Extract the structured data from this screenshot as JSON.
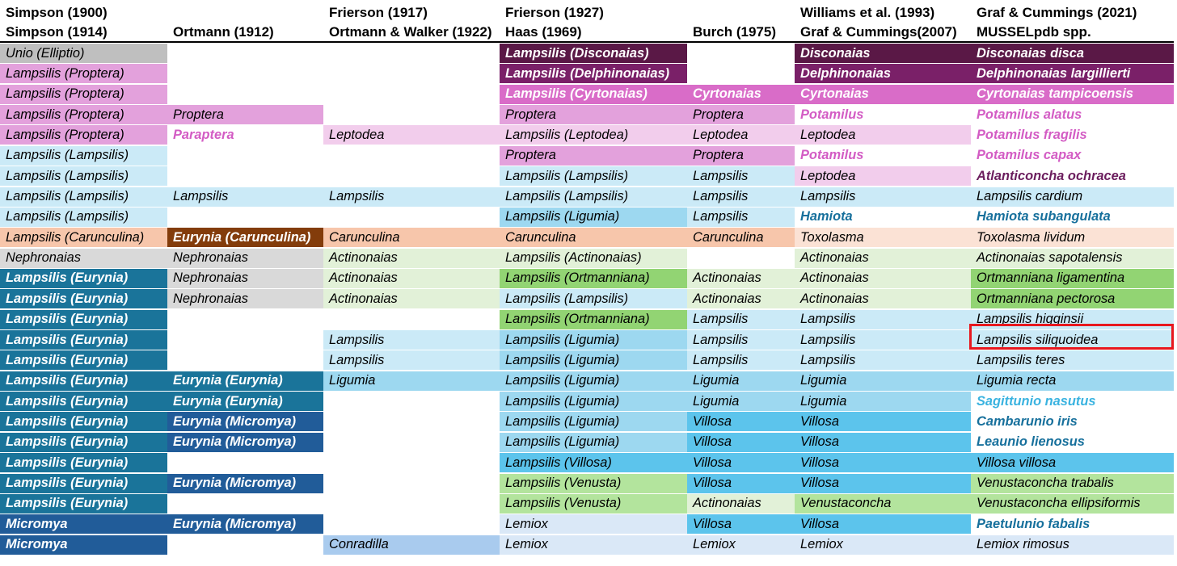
{
  "headers": [
    [
      "Simpson (1900)",
      "Simpson (1914)"
    ],
    [
      "",
      "Ortmann (1912)"
    ],
    [
      "Frierson (1917)",
      "Ortmann & Walker (1922)"
    ],
    [
      "Frierson (1927)",
      "Haas (1969)"
    ],
    [
      "",
      "Burch (1975)"
    ],
    [
      "Williams et al. (1993)",
      "Graf & Cummings(2007)"
    ],
    [
      "Graf & Cummings (2021)",
      "MUSSELpdb spp."
    ]
  ],
  "palette": {
    "gray": {
      "bg": "#bfbfbf",
      "fg": "#000000"
    },
    "lightgray": {
      "bg": "#d9d9d9",
      "fg": "#000000"
    },
    "darkpurple": {
      "bg": "#5a1846",
      "fg": "#ffffff"
    },
    "purple": {
      "bg": "#7a2068",
      "fg": "#ffffff"
    },
    "magenta": {
      "bg": "#d96cc8",
      "fg": "#ffffff"
    },
    "pink": {
      "bg": "#e3a1dc",
      "fg": "#000000"
    },
    "lightpink": {
      "bg": "#f2cdec",
      "fg": "#000000"
    },
    "lightblue": {
      "bg": "#cbeaf7",
      "fg": "#000000"
    },
    "skyblue": {
      "bg": "#9dd8f0",
      "fg": "#000000"
    },
    "medblue": {
      "bg": "#5cc4ec",
      "fg": "#000000"
    },
    "brown": {
      "bg": "#833c0b",
      "fg": "#ffffff"
    },
    "peach": {
      "bg": "#f7c6ab",
      "fg": "#000000"
    },
    "lightpeach": {
      "bg": "#fbe2d5",
      "fg": "#000000"
    },
    "palegreen": {
      "bg": "#e2f1d8",
      "fg": "#000000"
    },
    "green": {
      "bg": "#92d473",
      "fg": "#000000"
    },
    "lightgreen": {
      "bg": "#b3e49d",
      "fg": "#000000"
    },
    "teal": {
      "bg": "#1a749a",
      "fg": "#ffffff"
    },
    "navy": {
      "bg": "#215c99",
      "fg": "#ffffff"
    },
    "blue": {
      "bg": "#1f5fa0",
      "fg": "#ffffff"
    },
    "paleblue": {
      "bg": "#dae8f7",
      "fg": "#000000"
    },
    "conradilla": {
      "bg": "#a9cbee",
      "fg": "#000000"
    },
    "white": {
      "bg": "#ffffff",
      "fg": "#000000"
    },
    "white_pink_text": {
      "bg": "#ffffff",
      "fg": "#d35cc4"
    },
    "white_purple_text": {
      "bg": "#ffffff",
      "fg": "#6c1e5e"
    },
    "white_blue_text": {
      "bg": "#ffffff",
      "fg": "#17709c"
    },
    "white_cyan_text": {
      "bg": "#ffffff",
      "fg": "#3ab3e0"
    },
    "peach_white_text": {
      "bg": "#ffffff",
      "fg": "#d35cc4"
    }
  },
  "highlight": {
    "row": 14,
    "col": 6,
    "color": "#e8181e"
  },
  "rows": [
    [
      [
        "Unio (Elliptio)",
        "gray",
        0
      ],
      [
        "",
        "white",
        0
      ],
      [
        "",
        "white",
        0
      ],
      [
        "Lampsilis (Disconaias)",
        "darkpurple",
        1
      ],
      [
        "",
        "white",
        0
      ],
      [
        "Disconaias",
        "darkpurple",
        1
      ],
      [
        "Disconaias disca",
        "darkpurple",
        1
      ]
    ],
    [
      [
        "Lampsilis (Proptera)",
        "pink",
        0
      ],
      [
        "",
        "white",
        0
      ],
      [
        "",
        "white",
        0
      ],
      [
        "Lampsilis (Delphinonaias)",
        "purple",
        1
      ],
      [
        "",
        "white",
        0
      ],
      [
        "Delphinonaias",
        "purple",
        1
      ],
      [
        "Delphinonaias largillierti",
        "purple",
        1
      ]
    ],
    [
      [
        "Lampsilis (Proptera)",
        "pink",
        0
      ],
      [
        "",
        "white",
        0
      ],
      [
        "",
        "white",
        0
      ],
      [
        "Lampsilis (Cyrtonaias)",
        "magenta",
        1
      ],
      [
        "Cyrtonaias",
        "magenta",
        1
      ],
      [
        "Cyrtonaias",
        "magenta",
        1
      ],
      [
        "Cyrtonaias tampicoensis",
        "magenta",
        1
      ]
    ],
    [
      [
        "Lampsilis (Proptera)",
        "pink",
        0
      ],
      [
        "Proptera",
        "pink",
        0
      ],
      [
        "",
        "white",
        0
      ],
      [
        "Proptera",
        "pink",
        0
      ],
      [
        "Proptera",
        "pink",
        0
      ],
      [
        "Potamilus",
        "white_pink_text",
        1
      ],
      [
        "Potamilus alatus",
        "white_pink_text",
        1
      ]
    ],
    [
      [
        "Lampsilis (Proptera)",
        "pink",
        0
      ],
      [
        "Paraptera",
        "white_pink_text",
        1
      ],
      [
        "Leptodea",
        "lightpink",
        0
      ],
      [
        "Lampsilis (Leptodea)",
        "lightpink",
        0
      ],
      [
        "Leptodea",
        "lightpink",
        0
      ],
      [
        "Leptodea",
        "lightpink",
        0
      ],
      [
        "Potamilus fragilis",
        "white_pink_text",
        1
      ]
    ],
    [
      [
        "Lampsilis (Lampsilis)",
        "lightblue",
        0
      ],
      [
        "",
        "white",
        0
      ],
      [
        "",
        "white",
        0
      ],
      [
        "Proptera",
        "pink",
        0
      ],
      [
        "Proptera",
        "pink",
        0
      ],
      [
        "Potamilus",
        "white_pink_text",
        1
      ],
      [
        "Potamilus capax",
        "white_pink_text",
        1
      ]
    ],
    [
      [
        "Lampsilis (Lampsilis)",
        "lightblue",
        0
      ],
      [
        "",
        "white",
        0
      ],
      [
        "",
        "white",
        0
      ],
      [
        "Lampsilis (Lampsilis)",
        "lightblue",
        0
      ],
      [
        "Lampsilis",
        "lightblue",
        0
      ],
      [
        "Leptodea",
        "lightpink",
        0
      ],
      [
        "Atlanticoncha ochracea",
        "white_purple_text",
        1
      ]
    ],
    [
      [
        "Lampsilis (Lampsilis)",
        "lightblue",
        0
      ],
      [
        "Lampsilis",
        "lightblue",
        0
      ],
      [
        "Lampsilis",
        "lightblue",
        0
      ],
      [
        "Lampsilis (Lampsilis)",
        "lightblue",
        0
      ],
      [
        "Lampsilis",
        "lightblue",
        0
      ],
      [
        "Lampsilis",
        "lightblue",
        0
      ],
      [
        "Lampsilis cardium",
        "lightblue",
        0
      ]
    ],
    [
      [
        "Lampsilis (Lampsilis)",
        "lightblue",
        0
      ],
      [
        "",
        "white",
        0
      ],
      [
        "",
        "white",
        0
      ],
      [
        "Lampsilis (Ligumia)",
        "skyblue",
        0
      ],
      [
        "Lampsilis",
        "lightblue",
        0
      ],
      [
        "Hamiota",
        "white_blue_text",
        1
      ],
      [
        "Hamiota subangulata",
        "white_blue_text",
        1
      ]
    ],
    [
      [
        "Lampsilis (Carunculina)",
        "peach",
        0
      ],
      [
        "Eurynia (Carunculina)",
        "brown",
        1
      ],
      [
        "Carunculina",
        "peach",
        0
      ],
      [
        "Carunculina",
        "peach",
        0
      ],
      [
        "Carunculina",
        "peach",
        0
      ],
      [
        "Toxolasma",
        "lightpeach",
        0
      ],
      [
        "Toxolasma lividum",
        "lightpeach",
        0
      ]
    ],
    [
      [
        "Nephronaias",
        "lightgray",
        0
      ],
      [
        "Nephronaias",
        "lightgray",
        0
      ],
      [
        "Actinonaias",
        "palegreen",
        0
      ],
      [
        "Lampsilis (Actinonaias)",
        "palegreen",
        0
      ],
      [
        "",
        "white",
        0
      ],
      [
        "Actinonaias",
        "palegreen",
        0
      ],
      [
        "Actinonaias sapotalensis",
        "palegreen",
        0
      ]
    ],
    [
      [
        "Lampsilis (Eurynia)",
        "teal",
        1
      ],
      [
        "Nephronaias",
        "lightgray",
        0
      ],
      [
        "Actinonaias",
        "palegreen",
        0
      ],
      [
        "Lampsilis (Ortmanniana)",
        "green",
        0
      ],
      [
        "Actinonaias",
        "palegreen",
        0
      ],
      [
        "Actinonaias",
        "palegreen",
        0
      ],
      [
        "Ortmanniana ligamentina",
        "green",
        0
      ]
    ],
    [
      [
        "Lampsilis (Eurynia)",
        "teal",
        1
      ],
      [
        "Nephronaias",
        "lightgray",
        0
      ],
      [
        "Actinonaias",
        "palegreen",
        0
      ],
      [
        "Lampsilis (Lampsilis)",
        "lightblue",
        0
      ],
      [
        "Actinonaias",
        "palegreen",
        0
      ],
      [
        "Actinonaias",
        "palegreen",
        0
      ],
      [
        "Ortmanniana pectorosa",
        "green",
        0
      ]
    ],
    [
      [
        "Lampsilis (Eurynia)",
        "teal",
        1
      ],
      [
        "",
        "white",
        0
      ],
      [
        "",
        "white",
        0
      ],
      [
        "Lampsilis (Ortmanniana)",
        "green",
        0
      ],
      [
        "Lampsilis",
        "lightblue",
        0
      ],
      [
        "Lampsilis",
        "lightblue",
        0
      ],
      [
        "Lampsilis higginsii",
        "lightblue",
        0
      ]
    ],
    [
      [
        "Lampsilis (Eurynia)",
        "teal",
        1
      ],
      [
        "",
        "white",
        0
      ],
      [
        "Lampsilis",
        "lightblue",
        0
      ],
      [
        "Lampsilis (Ligumia)",
        "skyblue",
        0
      ],
      [
        "Lampsilis",
        "lightblue",
        0
      ],
      [
        "Lampsilis",
        "lightblue",
        0
      ],
      [
        "Lampsilis siliquoidea",
        "lightblue",
        0
      ]
    ],
    [
      [
        "Lampsilis (Eurynia)",
        "teal",
        1
      ],
      [
        "",
        "white",
        0
      ],
      [
        "Lampsilis",
        "lightblue",
        0
      ],
      [
        "Lampsilis (Ligumia)",
        "skyblue",
        0
      ],
      [
        "Lampsilis",
        "lightblue",
        0
      ],
      [
        "Lampsilis",
        "lightblue",
        0
      ],
      [
        "Lampsilis teres",
        "lightblue",
        0
      ]
    ],
    [
      [
        "Lampsilis (Eurynia)",
        "teal",
        1
      ],
      [
        "Eurynia (Eurynia)",
        "teal",
        1
      ],
      [
        "Ligumia",
        "skyblue",
        0
      ],
      [
        "Lampsilis (Ligumia)",
        "skyblue",
        0
      ],
      [
        "Ligumia",
        "skyblue",
        0
      ],
      [
        "Ligumia",
        "skyblue",
        0
      ],
      [
        "Ligumia recta",
        "skyblue",
        0
      ]
    ],
    [
      [
        "Lampsilis (Eurynia)",
        "teal",
        1
      ],
      [
        "Eurynia (Eurynia)",
        "teal",
        1
      ],
      [
        "",
        "white",
        0
      ],
      [
        "Lampsilis (Ligumia)",
        "skyblue",
        0
      ],
      [
        "Ligumia",
        "skyblue",
        0
      ],
      [
        "Ligumia",
        "skyblue",
        0
      ],
      [
        "Sagittunio nasutus",
        "white_cyan_text",
        1
      ]
    ],
    [
      [
        "Lampsilis (Eurynia)",
        "teal",
        1
      ],
      [
        "Eurynia (Micromya)",
        "navy",
        1
      ],
      [
        "",
        "white",
        0
      ],
      [
        "Lampsilis (Ligumia)",
        "skyblue",
        0
      ],
      [
        "Villosa",
        "medblue",
        0
      ],
      [
        "Villosa",
        "medblue",
        0
      ],
      [
        "Cambarunio iris",
        "white_blue_text",
        1
      ]
    ],
    [
      [
        "Lampsilis (Eurynia)",
        "teal",
        1
      ],
      [
        "Eurynia (Micromya)",
        "navy",
        1
      ],
      [
        "",
        "white",
        0
      ],
      [
        "Lampsilis (Ligumia)",
        "skyblue",
        0
      ],
      [
        "Villosa",
        "medblue",
        0
      ],
      [
        "Villosa",
        "medblue",
        0
      ],
      [
        "Leaunio lienosus",
        "white_blue_text",
        1
      ]
    ],
    [
      [
        "Lampsilis (Eurynia)",
        "teal",
        1
      ],
      [
        "",
        "white",
        0
      ],
      [
        "",
        "white",
        0
      ],
      [
        "Lampsilis (Villosa)",
        "medblue",
        0
      ],
      [
        "Villosa",
        "medblue",
        0
      ],
      [
        "Villosa",
        "medblue",
        0
      ],
      [
        "Villosa villosa",
        "medblue",
        0
      ]
    ],
    [
      [
        "Lampsilis (Eurynia)",
        "teal",
        1
      ],
      [
        "Eurynia (Micromya)",
        "navy",
        1
      ],
      [
        "",
        "white",
        0
      ],
      [
        "Lampsilis (Venusta)",
        "lightgreen",
        0
      ],
      [
        "Villosa",
        "medblue",
        0
      ],
      [
        "Villosa",
        "medblue",
        0
      ],
      [
        " Venustaconcha trabalis",
        "lightgreen",
        0
      ]
    ],
    [
      [
        "Lampsilis (Eurynia)",
        "teal",
        1
      ],
      [
        "",
        "white",
        0
      ],
      [
        "",
        "white",
        0
      ],
      [
        "Lampsilis (Venusta)",
        "lightgreen",
        0
      ],
      [
        "Actinonaias",
        "palegreen",
        0
      ],
      [
        "Venustaconcha",
        "lightgreen",
        0
      ],
      [
        "Venustaconcha ellipsiformis",
        "lightgreen",
        0
      ]
    ],
    [
      [
        "Micromya",
        "navy",
        1
      ],
      [
        "Eurynia (Micromya)",
        "navy",
        1
      ],
      [
        "",
        "white",
        0
      ],
      [
        "Lemiox",
        "paleblue",
        0
      ],
      [
        "Villosa",
        "medblue",
        0
      ],
      [
        "Villosa",
        "medblue",
        0
      ],
      [
        "Paetulunio fabalis",
        "white_blue_text",
        1
      ]
    ],
    [
      [
        "Micromya",
        "navy",
        1
      ],
      [
        "",
        "white",
        0
      ],
      [
        "Conradilla",
        "conradilla",
        0
      ],
      [
        "Lemiox",
        "paleblue",
        0
      ],
      [
        "Lemiox",
        "paleblue",
        0
      ],
      [
        "Lemiox",
        "paleblue",
        0
      ],
      [
        "Lemiox rimosus",
        "paleblue",
        0
      ]
    ]
  ]
}
